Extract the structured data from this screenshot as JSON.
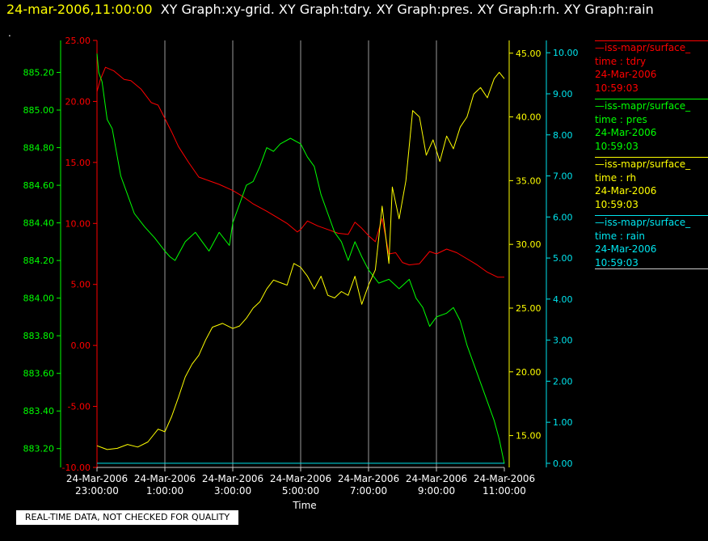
{
  "header": {
    "timestamp": "24-mar-2006,11:00:00",
    "titles": "XY Graph:xy-grid.  XY Graph:tdry.  XY Graph:pres.  XY Graph:rh.  XY Graph:rain"
  },
  "stray_mark": ".",
  "notice": "REAL-TIME DATA, NOT CHECKED FOR QUALITY",
  "legend": [
    {
      "name": "—iss-mapr/surface_",
      "field": "time : tdry",
      "date": "24-Mar-2006",
      "time": "10:59:03",
      "color": "#ff0000"
    },
    {
      "name": "—iss-mapr/surface_",
      "field": "time : pres",
      "date": "24-Mar-2006",
      "time": "10:59:03",
      "color": "#00ff00"
    },
    {
      "name": "—iss-mapr/surface_",
      "field": "time : rh",
      "date": "24-Mar-2006",
      "time": "10:59:03",
      "color": "#ffff00"
    },
    {
      "name": "—iss-mapr/surface_",
      "field": "time : rain",
      "date": "24-Mar-2006",
      "time": "10:59:03",
      "color": "#00e5ee"
    }
  ],
  "chart_data": {
    "type": "line",
    "xlabel": "Time",
    "x_ticks": [
      [
        "24-Mar-2006",
        "23:00:00"
      ],
      [
        "24-Mar-2006",
        "1:00:00"
      ],
      [
        "24-Mar-2006",
        "3:00:00"
      ],
      [
        "24-Mar-2006",
        "5:00:00"
      ],
      [
        "24-Mar-2006",
        "7:00:00"
      ],
      [
        "24-Mar-2006",
        "9:00:00"
      ],
      [
        "24-Mar-2006",
        "11:00:00"
      ]
    ],
    "x_hours": [
      0,
      2,
      4,
      6,
      8,
      10,
      12
    ],
    "xlim": [
      0,
      12
    ],
    "grid": "vertical lines",
    "axes": [
      {
        "id": "tdry",
        "color": "#ff0000",
        "side": "left-inner",
        "ylim": [
          -10,
          25
        ],
        "ticks": [
          "-10.00",
          "-5.00",
          "0.00",
          "5.00",
          "10.00",
          "15.00",
          "20.00",
          "25.00"
        ]
      },
      {
        "id": "pres",
        "color": "#00ff00",
        "side": "left-outer",
        "ylim": [
          883.1,
          885.37
        ],
        "ticks": [
          "883.20",
          "883.40",
          "883.60",
          "883.80",
          "884.00",
          "884.20",
          "884.40",
          "884.60",
          "884.80",
          "885.00",
          "885.20"
        ]
      },
      {
        "id": "rh",
        "color": "#ffff00",
        "side": "right-inner",
        "ylim": [
          12.5,
          46
        ],
        "ticks": [
          "15.00",
          "20.00",
          "25.00",
          "30.00",
          "35.00",
          "40.00",
          "45.00"
        ]
      },
      {
        "id": "rain",
        "color": "#00e5ee",
        "side": "right-outer",
        "ylim": [
          -0.1,
          10.3
        ],
        "ticks": [
          "0.00",
          "1.00",
          "2.00",
          "3.00",
          "4.00",
          "5.00",
          "6.00",
          "7.00",
          "8.00",
          "9.00",
          "10.00"
        ]
      }
    ],
    "series": [
      {
        "axis": "tdry",
        "color": "#ff0000",
        "x": [
          0,
          0.1,
          0.25,
          0.5,
          0.8,
          1.0,
          1.3,
          1.6,
          1.8,
          2.0,
          2.2,
          2.4,
          2.7,
          3.0,
          3.3,
          3.6,
          4.0,
          4.3,
          4.6,
          5.0,
          5.3,
          5.6,
          5.9,
          6.0,
          6.2,
          6.5,
          6.8,
          7.1,
          7.4,
          7.6,
          7.8,
          8.0,
          8.2,
          8.4,
          8.6,
          8.8,
          9.0,
          9.2,
          9.5,
          9.8,
          10.0,
          10.3,
          10.6,
          10.9,
          11.2,
          11.5,
          11.8,
          12.0
        ],
        "y": [
          20.8,
          21.8,
          22.8,
          22.5,
          21.8,
          21.7,
          21.0,
          19.9,
          19.7,
          18.6,
          17.5,
          16.3,
          15.0,
          13.8,
          13.5,
          13.2,
          12.7,
          12.2,
          11.6,
          11.0,
          10.5,
          10.0,
          9.3,
          9.5,
          10.2,
          9.8,
          9.5,
          9.2,
          9.1,
          10.1,
          9.6,
          9.0,
          8.5,
          10.4,
          7.5,
          7.6,
          6.8,
          6.6,
          6.7,
          7.7,
          7.5,
          7.9,
          7.6,
          7.1,
          6.6,
          6.0,
          5.6,
          5.6
        ]
      },
      {
        "axis": "pres",
        "color": "#00ff00",
        "x": [
          0,
          0.05,
          0.15,
          0.3,
          0.45,
          0.7,
          0.9,
          1.1,
          1.4,
          1.7,
          2.0,
          2.15,
          2.3,
          2.6,
          2.9,
          3.1,
          3.3,
          3.6,
          3.9,
          4.0,
          4.2,
          4.4,
          4.6,
          4.8,
          5.0,
          5.2,
          5.4,
          5.7,
          6.0,
          6.2,
          6.4,
          6.6,
          6.8,
          7.0,
          7.2,
          7.4,
          7.6,
          7.8,
          8.0,
          8.3,
          8.6,
          8.9,
          9.2,
          9.4,
          9.6,
          9.8,
          10.0,
          10.3,
          10.5,
          10.7,
          10.9,
          11.1,
          11.3,
          11.5,
          11.7,
          11.85,
          12.0
        ],
        "y": [
          885.3,
          885.2,
          885.15,
          884.95,
          884.9,
          884.65,
          884.55,
          884.45,
          884.38,
          884.32,
          884.25,
          884.22,
          884.2,
          884.3,
          884.35,
          884.3,
          884.25,
          884.35,
          884.28,
          884.4,
          884.5,
          884.6,
          884.62,
          884.7,
          884.8,
          884.78,
          884.82,
          884.85,
          884.82,
          884.75,
          884.7,
          884.55,
          884.45,
          884.35,
          884.3,
          884.2,
          884.3,
          884.22,
          884.15,
          884.08,
          884.1,
          884.05,
          884.1,
          884.0,
          883.95,
          883.85,
          883.9,
          883.92,
          883.95,
          883.88,
          883.75,
          883.65,
          883.55,
          883.45,
          883.35,
          883.25,
          883.12
        ]
      },
      {
        "axis": "rh",
        "color": "#ffff00",
        "x": [
          0,
          0.3,
          0.6,
          0.9,
          1.2,
          1.5,
          1.8,
          2.0,
          2.2,
          2.4,
          2.6,
          2.8,
          3.0,
          3.2,
          3.4,
          3.7,
          4.0,
          4.2,
          4.4,
          4.6,
          4.8,
          5.0,
          5.2,
          5.4,
          5.6,
          5.8,
          6.0,
          6.2,
          6.4,
          6.6,
          6.8,
          7.0,
          7.2,
          7.4,
          7.6,
          7.8,
          8.0,
          8.2,
          8.4,
          8.6,
          8.7,
          8.9,
          9.1,
          9.3,
          9.5,
          9.7,
          9.9,
          10.1,
          10.3,
          10.5,
          10.7,
          10.9,
          11.1,
          11.3,
          11.5,
          11.7,
          11.85,
          12.0
        ],
        "y": [
          14.2,
          13.9,
          14.0,
          14.3,
          14.1,
          14.5,
          15.5,
          15.3,
          16.5,
          18.0,
          19.6,
          20.6,
          21.3,
          22.5,
          23.5,
          23.8,
          23.4,
          23.6,
          24.2,
          25.0,
          25.5,
          26.5,
          27.2,
          27.0,
          26.8,
          28.5,
          28.2,
          27.5,
          26.5,
          27.5,
          26.0,
          25.8,
          26.3,
          26.0,
          27.5,
          25.3,
          26.8,
          28.0,
          33.0,
          28.5,
          34.5,
          32.0,
          35.0,
          40.5,
          40.0,
          37.0,
          38.2,
          36.5,
          38.5,
          37.5,
          39.2,
          40.0,
          41.8,
          42.3,
          41.5,
          43.0,
          43.5,
          43.0
        ]
      },
      {
        "axis": "rain",
        "color": "#00e5ee",
        "x": [
          0,
          12
        ],
        "y": [
          0.0,
          0.0
        ]
      }
    ]
  }
}
